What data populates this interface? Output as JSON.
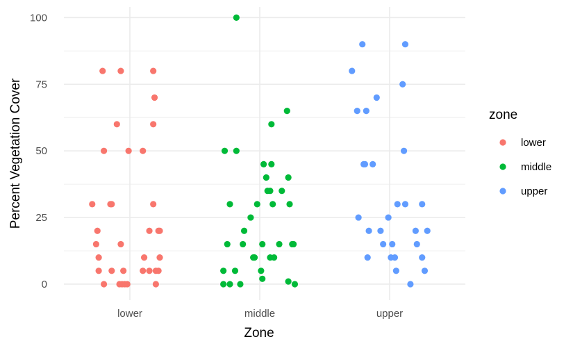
{
  "chart_data": {
    "type": "scatter",
    "xlabel": "Zone",
    "ylabel": "Percent Vegetation Cover",
    "categories": [
      "lower",
      "middle",
      "upper"
    ],
    "ylim": [
      -6,
      104
    ],
    "yticks": [
      0,
      25,
      50,
      75,
      100
    ],
    "grid": true,
    "jitter": "horizontal",
    "legend": {
      "title": "zone",
      "position": "right",
      "entries": [
        {
          "label": "lower",
          "color": "#F8766D"
        },
        {
          "label": "middle",
          "color": "#00BA38"
        },
        {
          "label": "upper",
          "color": "#619CFF"
        }
      ]
    },
    "series": [
      {
        "name": "lower",
        "color": "#F8766D",
        "points": [
          {
            "x": -0.21,
            "y": 80
          },
          {
            "x": -0.07,
            "y": 80
          },
          {
            "x": 0.18,
            "y": 80
          },
          {
            "x": 0.19,
            "y": 70
          },
          {
            "x": -0.1,
            "y": 60
          },
          {
            "x": 0.18,
            "y": 60
          },
          {
            "x": -0.2,
            "y": 50
          },
          {
            "x": -0.01,
            "y": 50
          },
          {
            "x": 0.1,
            "y": 50
          },
          {
            "x": -0.29,
            "y": 30
          },
          {
            "x": -0.15,
            "y": 30
          },
          {
            "x": -0.14,
            "y": 30
          },
          {
            "x": 0.18,
            "y": 30
          },
          {
            "x": -0.25,
            "y": 20
          },
          {
            "x": 0.15,
            "y": 20
          },
          {
            "x": 0.22,
            "y": 20
          },
          {
            "x": 0.23,
            "y": 20
          },
          {
            "x": -0.26,
            "y": 15
          },
          {
            "x": -0.07,
            "y": 15
          },
          {
            "x": -0.24,
            "y": 10
          },
          {
            "x": 0.11,
            "y": 10
          },
          {
            "x": 0.23,
            "y": 10
          },
          {
            "x": -0.24,
            "y": 5
          },
          {
            "x": -0.14,
            "y": 5
          },
          {
            "x": -0.05,
            "y": 5
          },
          {
            "x": 0.1,
            "y": 5
          },
          {
            "x": 0.15,
            "y": 5
          },
          {
            "x": 0.2,
            "y": 5
          },
          {
            "x": 0.22,
            "y": 5
          },
          {
            "x": -0.2,
            "y": 0
          },
          {
            "x": -0.08,
            "y": 0
          },
          {
            "x": -0.06,
            "y": 0
          },
          {
            "x": -0.04,
            "y": 0
          },
          {
            "x": -0.02,
            "y": 0
          },
          {
            "x": 0.2,
            "y": 0
          }
        ]
      },
      {
        "name": "middle",
        "color": "#00BA38",
        "points": [
          {
            "x": -0.18,
            "y": 100
          },
          {
            "x": 0.21,
            "y": 65
          },
          {
            "x": 0.09,
            "y": 60
          },
          {
            "x": -0.27,
            "y": 50
          },
          {
            "x": -0.18,
            "y": 50
          },
          {
            "x": 0.03,
            "y": 45
          },
          {
            "x": 0.09,
            "y": 45
          },
          {
            "x": 0.22,
            "y": 40
          },
          {
            "x": 0.05,
            "y": 40
          },
          {
            "x": 0.06,
            "y": 35
          },
          {
            "x": 0.08,
            "y": 35
          },
          {
            "x": 0.17,
            "y": 35
          },
          {
            "x": -0.23,
            "y": 30
          },
          {
            "x": -0.02,
            "y": 30
          },
          {
            "x": 0.1,
            "y": 30
          },
          {
            "x": 0.23,
            "y": 30
          },
          {
            "x": -0.07,
            "y": 25
          },
          {
            "x": -0.12,
            "y": 20
          },
          {
            "x": -0.25,
            "y": 15
          },
          {
            "x": -0.13,
            "y": 15
          },
          {
            "x": 0.02,
            "y": 15
          },
          {
            "x": 0.15,
            "y": 15
          },
          {
            "x": 0.25,
            "y": 15
          },
          {
            "x": 0.26,
            "y": 15
          },
          {
            "x": -0.05,
            "y": 10
          },
          {
            "x": -0.04,
            "y": 10
          },
          {
            "x": 0.08,
            "y": 10
          },
          {
            "x": 0.11,
            "y": 10
          },
          {
            "x": -0.28,
            "y": 5
          },
          {
            "x": -0.19,
            "y": 5
          },
          {
            "x": 0.01,
            "y": 5
          },
          {
            "x": 0.02,
            "y": 2
          },
          {
            "x": -0.28,
            "y": 0
          },
          {
            "x": -0.23,
            "y": 0
          },
          {
            "x": -0.15,
            "y": 0
          },
          {
            "x": 0.22,
            "y": 1
          },
          {
            "x": 0.27,
            "y": 0
          }
        ]
      },
      {
        "name": "upper",
        "color": "#619CFF",
        "points": [
          {
            "x": -0.21,
            "y": 90
          },
          {
            "x": 0.12,
            "y": 90
          },
          {
            "x": -0.29,
            "y": 80
          },
          {
            "x": 0.1,
            "y": 75
          },
          {
            "x": -0.1,
            "y": 70
          },
          {
            "x": -0.25,
            "y": 65
          },
          {
            "x": -0.18,
            "y": 65
          },
          {
            "x": 0.11,
            "y": 50
          },
          {
            "x": -0.2,
            "y": 45
          },
          {
            "x": -0.19,
            "y": 45
          },
          {
            "x": -0.13,
            "y": 45
          },
          {
            "x": 0.06,
            "y": 30
          },
          {
            "x": 0.12,
            "y": 30
          },
          {
            "x": 0.25,
            "y": 30
          },
          {
            "x": -0.24,
            "y": 25
          },
          {
            "x": -0.01,
            "y": 25
          },
          {
            "x": -0.16,
            "y": 20
          },
          {
            "x": -0.07,
            "y": 20
          },
          {
            "x": 0.2,
            "y": 20
          },
          {
            "x": 0.29,
            "y": 20
          },
          {
            "x": -0.05,
            "y": 15
          },
          {
            "x": 0.02,
            "y": 15
          },
          {
            "x": 0.21,
            "y": 15
          },
          {
            "x": -0.17,
            "y": 10
          },
          {
            "x": 0.01,
            "y": 10
          },
          {
            "x": 0.04,
            "y": 10
          },
          {
            "x": 0.25,
            "y": 10
          },
          {
            "x": 0.05,
            "y": 5
          },
          {
            "x": 0.27,
            "y": 5
          },
          {
            "x": 0.16,
            "y": 0
          }
        ]
      }
    ]
  }
}
